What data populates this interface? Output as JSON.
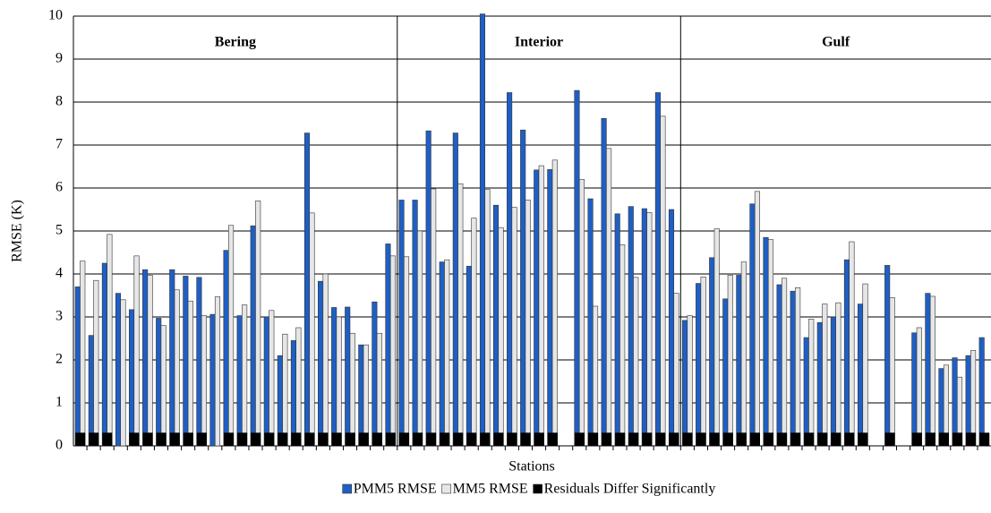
{
  "chart_data": {
    "type": "bar",
    "y_label": "RMSE (K)",
    "x_label": "Stations",
    "regions": [
      "Bering",
      "Interior",
      "Gulf"
    ],
    "categories": [
      null,
      null,
      null,
      null,
      null,
      null,
      null,
      null,
      null,
      null,
      null,
      null,
      null,
      null,
      null,
      null,
      null,
      null,
      null,
      null,
      null,
      null,
      null,
      null,
      null,
      null,
      null,
      null,
      null,
      null,
      null,
      null,
      null,
      null,
      null,
      null,
      null,
      null,
      null,
      null,
      null,
      null,
      null,
      null,
      null,
      null,
      null,
      null,
      null,
      null,
      null,
      null,
      null,
      null,
      null,
      null,
      null,
      null,
      null,
      null,
      null,
      null,
      null,
      null,
      null,
      null,
      null,
      null
    ],
    "series": [
      {
        "name": "PMM5 RMSE",
        "color": "#1f5fc4",
        "values": [
          3.7,
          2.57,
          4.25,
          3.55,
          3.17,
          4.1,
          2.97,
          4.1,
          3.95,
          3.92,
          3.06,
          4.55,
          3.03,
          5.12,
          3.0,
          2.1,
          2.45,
          7.28,
          3.83,
          3.22,
          3.23,
          2.35,
          3.35,
          4.7,
          5.72,
          5.72,
          7.33,
          4.28,
          7.28,
          4.18,
          10.05,
          5.6,
          8.22,
          7.35,
          6.42,
          6.43,
          null,
          8.27,
          5.75,
          7.62,
          5.4,
          5.57,
          5.52,
          8.22,
          5.5,
          2.92,
          3.78,
          4.38,
          3.42,
          3.97,
          5.63,
          4.85,
          3.75,
          3.6,
          2.52,
          2.87,
          3.0,
          4.33,
          3.3,
          null,
          4.2,
          null,
          2.63,
          3.55,
          1.8,
          2.05,
          2.1,
          2.52
        ]
      },
      {
        "name": "MM5 RMSE",
        "color": "#e6e6e6",
        "values": [
          4.3,
          3.85,
          4.92,
          3.4,
          4.42,
          3.97,
          2.8,
          3.63,
          3.37,
          3.03,
          3.47,
          5.13,
          3.28,
          5.7,
          3.15,
          2.6,
          2.75,
          5.42,
          4.0,
          3.0,
          2.62,
          2.35,
          2.62,
          4.42,
          4.4,
          5.0,
          5.98,
          4.33,
          6.1,
          5.3,
          5.97,
          5.08,
          5.55,
          5.72,
          6.52,
          6.65,
          null,
          6.2,
          3.25,
          6.92,
          4.68,
          3.92,
          5.43,
          7.67,
          3.55,
          3.03,
          3.93,
          5.05,
          3.97,
          4.28,
          5.92,
          4.8,
          3.9,
          3.68,
          2.95,
          3.3,
          3.33,
          4.75,
          3.77,
          null,
          3.45,
          null,
          2.75,
          3.48,
          1.88,
          1.6,
          2.22,
          null
        ]
      },
      {
        "name": "Residuals Differ Significantly",
        "color": "#000000",
        "values": [
          0.3,
          0.3,
          0.3,
          null,
          0.3,
          0.3,
          0.3,
          0.3,
          0.3,
          0.3,
          null,
          0.3,
          0.3,
          0.3,
          0.3,
          0.3,
          0.3,
          0.3,
          0.3,
          0.3,
          0.3,
          0.3,
          0.3,
          0.3,
          0.3,
          0.3,
          0.3,
          0.3,
          0.3,
          0.3,
          0.3,
          0.3,
          0.3,
          0.3,
          0.3,
          0.3,
          null,
          0.3,
          0.3,
          0.3,
          0.3,
          0.3,
          0.3,
          0.3,
          0.3,
          0.3,
          0.3,
          0.3,
          0.3,
          0.3,
          0.3,
          0.3,
          0.3,
          0.3,
          0.3,
          0.3,
          0.3,
          0.3,
          0.3,
          null,
          0.3,
          null,
          0.3,
          0.3,
          0.3,
          0.3,
          0.3,
          0.3
        ]
      }
    ],
    "ylim": [
      0,
      10
    ],
    "yticks": [
      0,
      1,
      2,
      3,
      4,
      5,
      6,
      7,
      8,
      9,
      10
    ],
    "grid": true,
    "legend": "bottom"
  }
}
